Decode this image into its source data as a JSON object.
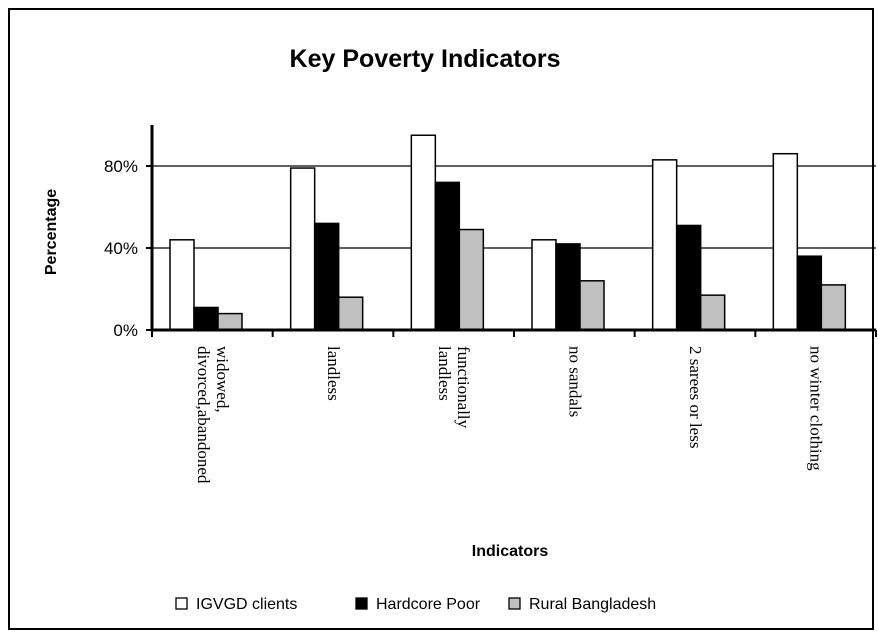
{
  "chart_data": {
    "type": "bar",
    "title": "Key Poverty  Indicators",
    "xlabel": "Indicators",
    "ylabel": "Percentage",
    "ylim": [
      0,
      100
    ],
    "yticks": [
      0,
      40,
      80
    ],
    "ytick_labels": [
      "0%",
      "40%",
      "80%"
    ],
    "grid": "horizontal",
    "legend_position": "bottom",
    "categories": [
      [
        "widowed,",
        "divorced,abandoned"
      ],
      [
        "landless"
      ],
      [
        "functionally",
        "landless"
      ],
      [
        "no sandals"
      ],
      [
        "2 sarees or less"
      ],
      [
        "no winter clothing"
      ]
    ],
    "series": [
      {
        "name": "IGVGD clients",
        "color": "#ffffff",
        "values": [
          44,
          79,
          95,
          44,
          83,
          86
        ]
      },
      {
        "name": "Hardcore Poor",
        "color": "#000000",
        "values": [
          11,
          52,
          72,
          42,
          51,
          36
        ]
      },
      {
        "name": "Rural Bangladesh",
        "color": "#c0c0c0",
        "values": [
          8,
          16,
          49,
          24,
          17,
          22
        ]
      }
    ]
  }
}
